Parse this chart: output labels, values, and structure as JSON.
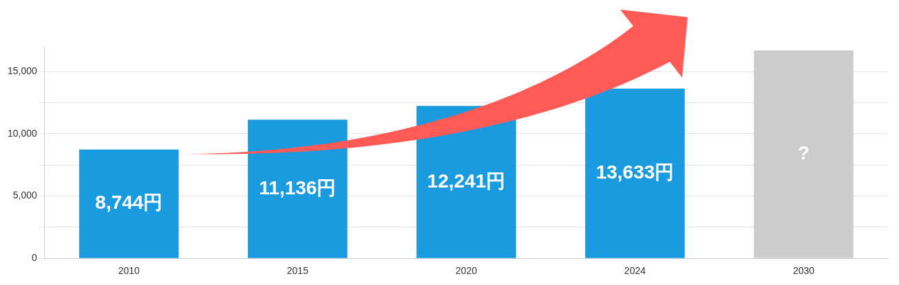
{
  "chart_data": {
    "type": "bar",
    "categories": [
      "2010",
      "2015",
      "2020",
      "2024",
      "2030"
    ],
    "values": [
      8744,
      11136,
      12241,
      13633,
      16700
    ],
    "colors": [
      "#1a9be0",
      "#1a9be0",
      "#1a9be0",
      "#1a9be0",
      "#cccccc"
    ],
    "value_labels": [
      "8,744円",
      "11,136円",
      "12,241円",
      "13,633円",
      "?"
    ],
    "ylim": [
      0,
      17000
    ],
    "yticks": [
      {
        "value": 0,
        "label": "0"
      },
      {
        "value": 2500,
        "label": null
      },
      {
        "value": 5000,
        "label": "5,000"
      },
      {
        "value": 7500,
        "label": null
      },
      {
        "value": 10000,
        "label": "10,000"
      },
      {
        "value": 12500,
        "label": null
      },
      {
        "value": 15000,
        "label": "15,000"
      }
    ],
    "grid": "y",
    "legend": false
  }
}
